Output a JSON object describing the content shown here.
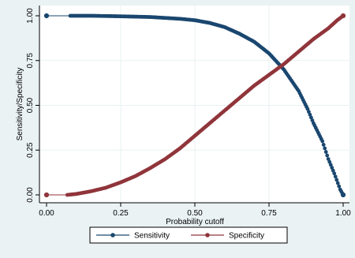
{
  "colors": {
    "outer_background": "#eaf2f3",
    "plot_background": "#ffffff",
    "grid": "#eaf2f3",
    "sensitivity": "#1a476f",
    "specificity": "#90353b"
  },
  "chart_data": {
    "type": "line",
    "title": "",
    "xlabel": "Probability cutoff",
    "ylabel": "Sensitivity/Specificity",
    "xlim": [
      0,
      1
    ],
    "ylim": [
      0,
      1
    ],
    "xticks": [
      "0.00",
      "0.25",
      "0.50",
      "0.75",
      "1.00"
    ],
    "yticks": [
      "0.00",
      "0.25",
      "0.50",
      "0.75",
      "1.00"
    ],
    "grid": true,
    "legend_position": "bottom",
    "series": [
      {
        "name": "Sensitivity",
        "color": "#1a476f",
        "marker": "circle",
        "points": [
          [
            0.0,
            1.0
          ],
          [
            0.08,
            1.0
          ],
          [
            0.15,
            1.0
          ],
          [
            0.25,
            0.997
          ],
          [
            0.35,
            0.993
          ],
          [
            0.45,
            0.983
          ],
          [
            0.5,
            0.975
          ],
          [
            0.55,
            0.96
          ],
          [
            0.6,
            0.937
          ],
          [
            0.65,
            0.9
          ],
          [
            0.7,
            0.855
          ],
          [
            0.75,
            0.79
          ],
          [
            0.8,
            0.7
          ],
          [
            0.85,
            0.58
          ],
          [
            0.88,
            0.48
          ],
          [
            0.9,
            0.4
          ],
          [
            0.93,
            0.3
          ],
          [
            0.95,
            0.2
          ],
          [
            0.97,
            0.12
          ],
          [
            0.99,
            0.03
          ],
          [
            1.0,
            0.0
          ]
        ]
      },
      {
        "name": "Specificity",
        "color": "#90353b",
        "marker": "circle",
        "points": [
          [
            0.0,
            0.0
          ],
          [
            0.07,
            0.0
          ],
          [
            0.1,
            0.005
          ],
          [
            0.15,
            0.02
          ],
          [
            0.2,
            0.04
          ],
          [
            0.25,
            0.07
          ],
          [
            0.3,
            0.105
          ],
          [
            0.35,
            0.15
          ],
          [
            0.4,
            0.2
          ],
          [
            0.45,
            0.26
          ],
          [
            0.5,
            0.33
          ],
          [
            0.55,
            0.4
          ],
          [
            0.6,
            0.47
          ],
          [
            0.65,
            0.54
          ],
          [
            0.7,
            0.61
          ],
          [
            0.75,
            0.67
          ],
          [
            0.8,
            0.73
          ],
          [
            0.85,
            0.8
          ],
          [
            0.9,
            0.87
          ],
          [
            0.95,
            0.93
          ],
          [
            0.98,
            0.975
          ],
          [
            1.0,
            1.0
          ]
        ]
      }
    ]
  }
}
